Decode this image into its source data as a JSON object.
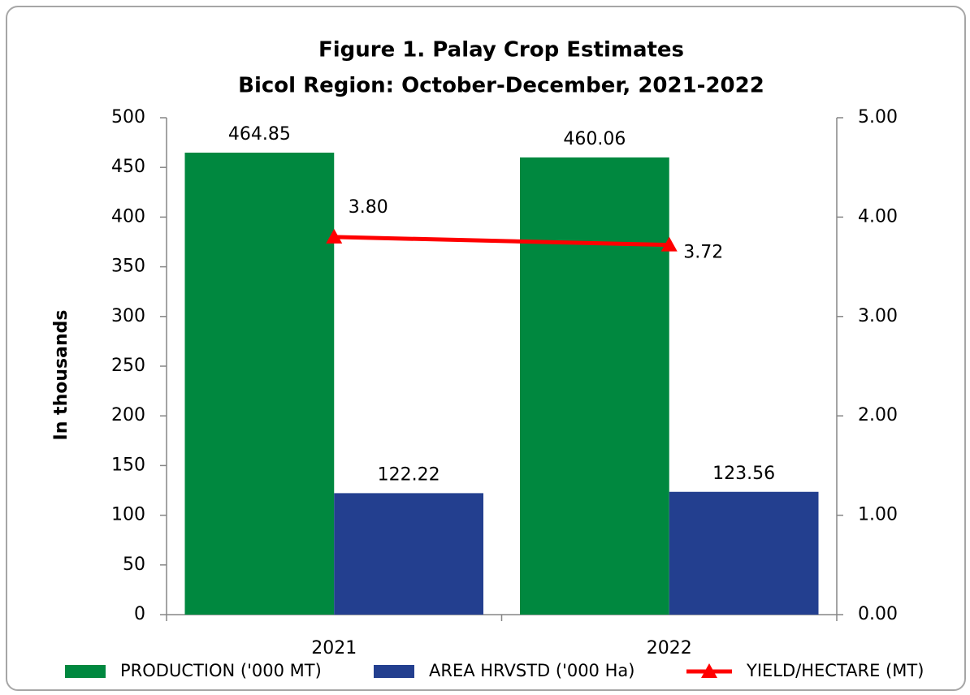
{
  "chart_data": {
    "type": "bar",
    "title": "Figure 1. Palay Crop Estimates",
    "subtitle": "Bicol Region: October-December, 2021-2022",
    "ylabel": "In thousands",
    "categories": [
      "2021",
      "2022"
    ],
    "series": [
      {
        "name": "PRODUCTION ('000 MT)",
        "color": "#00883f",
        "values": [
          464.85,
          460.06
        ]
      },
      {
        "name": "AREA HRVSTD ('000 Ha)",
        "color": "#233f8f",
        "values": [
          122.22,
          123.56
        ]
      },
      {
        "name": "YIELD/HECTARE  (MT)",
        "color": "#ff0000",
        "type": "line",
        "axis": "y2",
        "values": [
          3.8,
          3.72
        ],
        "value_labels": [
          "3.80",
          "3.72"
        ]
      }
    ],
    "ylim": [
      0,
      500
    ],
    "yticks": [
      0,
      50,
      100,
      150,
      200,
      250,
      300,
      350,
      400,
      450,
      500
    ],
    "y2lim": [
      0,
      5
    ],
    "y2ticks": [
      {
        "value": 0,
        "label": "0.00"
      },
      {
        "value": 1,
        "label": "1.00"
      },
      {
        "value": 2,
        "label": "2.00"
      },
      {
        "value": 3,
        "label": "3.00"
      },
      {
        "value": 4,
        "label": "4.00"
      },
      {
        "value": 5,
        "label": "5.00"
      }
    ],
    "legend": "bottom"
  }
}
